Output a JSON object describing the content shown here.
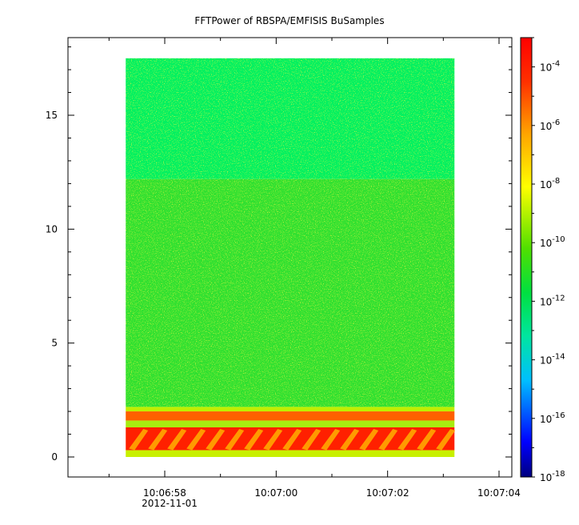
{
  "chart_data": {
    "type": "heatmap",
    "title": "FFTPower of RBSPA/EMFISIS  BuSamples",
    "xlabel": "",
    "ylabel": "",
    "x_ticks": [
      "10:06:58",
      "10:07:00",
      "10:07:02",
      "10:07:04"
    ],
    "x_date_label": "2012-11-01",
    "y_ticks": [
      "0",
      "5",
      "10",
      "15"
    ],
    "ylim": [
      -0.3,
      18.5
    ],
    "data_x_range": [
      "10:06:57.3",
      "10:07:03.2"
    ],
    "data_y_range": [
      0,
      17.5
    ],
    "colorbar": {
      "scale": "log",
      "range": [
        1e-18,
        0.001
      ],
      "tick_mantissa": "10",
      "tick_exponents": [
        "-4",
        "-6",
        "-8",
        "-10",
        "-12",
        "-14",
        "-16",
        "-18"
      ],
      "colors": [
        "#00007f",
        "#0000ff",
        "#00bfff",
        "#00e5a0",
        "#00e040",
        "#50e000",
        "#ffff00",
        "#ffa500",
        "#ff3000",
        "#ff0000"
      ]
    },
    "bands": [
      {
        "y_range": [
          12.2,
          17.5
        ],
        "level": "1e-13",
        "color": "#00f060"
      },
      {
        "y_range": [
          2.2,
          12.2
        ],
        "level": "1e-11",
        "color": "#30e030"
      },
      {
        "y_range": [
          1.6,
          2.0
        ],
        "level": "1e-6",
        "color": "#ff6000"
      },
      {
        "y_range": [
          0.3,
          1.3
        ],
        "level": "1e-5",
        "color": "#ff2000"
      }
    ]
  }
}
